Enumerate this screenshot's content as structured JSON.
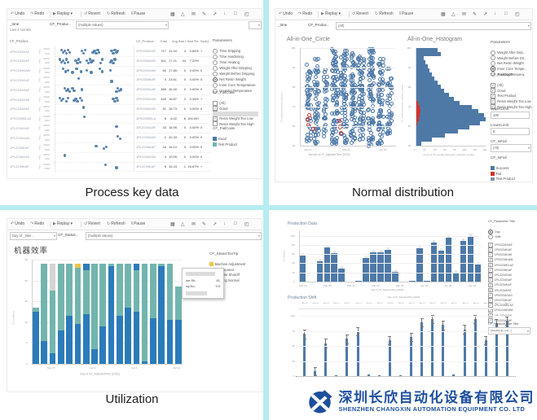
{
  "canvas": {
    "bg": "#ffffff",
    "divider_color": "#b5edf0"
  },
  "captions": {
    "tl": "Process key data",
    "tr": "Normal distribution",
    "bl": "Utilization"
  },
  "toolbar": {
    "items": [
      {
        "icon": "↶",
        "label": "Undo"
      },
      {
        "icon": "↷",
        "label": "Redo"
      },
      {
        "icon": "▶",
        "label": "Replay",
        "caret": true
      },
      {
        "icon": "↺",
        "label": "Revert"
      },
      {
        "icon": "↻",
        "label": "Refresh"
      },
      {
        "icon": "‖",
        "label": "Pause"
      }
    ],
    "right_icons": [
      {
        "glyph": "▦",
        "name": "view-data-icon"
      },
      {
        "glyph": "△",
        "name": "alerts-icon"
      },
      {
        "glyph": "✉",
        "name": "subscribe-icon"
      },
      {
        "glyph": "✎",
        "name": "edit-icon"
      },
      {
        "glyph": "↗",
        "name": "share-icon"
      },
      {
        "glyph": "↓",
        "name": "download-icon"
      },
      {
        "glyph": "□",
        "name": "comments-icon"
      },
      {
        "glyph": "◰",
        "name": "fullscreen-icon"
      }
    ]
  },
  "tl": {
    "filters": {
      "time_label": "_time",
      "time_value": "Last 4 months",
      "product_label": "CF_Produc..",
      "product_value": "(multiple values)"
    },
    "row_header": "CF_Product..",
    "row_axis_label": "Para..",
    "parameters": {
      "title": "Parameters",
      "options": [
        "Time Dripping",
        "Time Hardening",
        "Time Heating",
        "Weight After Dripping",
        "Weight Before Dripping",
        "Net Resin Weight",
        "Inner Core Temperature",
        "Housing Temperature"
      ],
      "selected": 5
    },
    "failcode_filter": {
      "title": "CF_FailCode",
      "items": [
        {
          "label": "(All)",
          "checked": false
        },
        {
          "label": "Good",
          "checked": true
        },
        {
          "label": "Test Product",
          "checked": true
        },
        {
          "label": "Resin Weight Too Low",
          "checked": true
        },
        {
          "label": "Resin Weight Too High",
          "checked": false
        }
      ],
      "highlight_index": 3
    },
    "failcode_legend": {
      "title": "CF_FailCode",
      "items": [
        {
          "label": "Good",
          "color": "#4e79a7"
        },
        {
          "label": "Test Product",
          "color": "#72b5ae"
        }
      ]
    }
  },
  "tr": {
    "filters": {
      "time_label": "_time",
      "product_label": "CF_Produc..",
      "product_value": "(All)"
    },
    "circle": {
      "title": "All-in-One_Circle",
      "ylabel": "CF_overall_parameter_selection..",
      "yticks": [
        100,
        90,
        80,
        70,
        60,
        50
      ],
      "xlabel": "Second of CF_AdjustedTime [2023]"
    },
    "hist": {
      "title": "All-in-One_Histogram",
      "ylabel": "CF_overall_parameter_selection_numbe..",
      "xlabel": "Count of CF_overall_parameter_selection_numbe.."
    },
    "parameters": {
      "title": "Parameters",
      "options": [
        "Weight After Drip..",
        "Weight Before Dri..",
        "Net Resin Weight",
        "Inner Core Tempe..",
        "Housing Tempera.."
      ],
      "selected": 3
    },
    "failcode_filter": {
      "title": "CF_FailCode",
      "items": [
        "(All)",
        "Good",
        "Test Product",
        "Resin Weight Too Low",
        "Resin Weight Too High"
      ]
    },
    "upper_limit": {
      "label": "UpperLimit",
      "value": "100"
    },
    "lower_limit": {
      "label": "LowerLimit",
      "value": "0"
    },
    "isfail_select": {
      "label": "CF_IsFail",
      "value": "(All)"
    },
    "isfail_legend": {
      "title": "CF_IsFail",
      "items": [
        {
          "label": "Success",
          "color": "#4e79a7"
        },
        {
          "label": "Fail",
          "color": "#d0342c"
        },
        {
          "label": "Test Product",
          "color": "#7b93ad"
        }
      ]
    }
  },
  "bl": {
    "filters": {
      "day_value": "Day of _time ..",
      "status_label": "CF_Status..",
      "status_value": "(multiple values)"
    },
    "title": "机器效率",
    "ylabel": "CF_TotalHours",
    "xlabel": "Day of CF_AdjustedTime [2023]",
    "legend": {
      "title": "CF_StatusTooTip",
      "items": [
        {
          "label": "Machine Adjustment",
          "color": "#eec643"
        },
        {
          "label": "Maintenance",
          "color": "#d4d4d4"
        },
        {
          "label": "Machine Shutoff",
          "color": "#72b5ae"
        },
        {
          "label": "Working Normal",
          "color": "#2b7bba"
        }
      ]
    },
    "tooltip": {
      "rows": [
        [
          "ine Sh..",
          "61"
        ],
        [
          "ng No..",
          "9.9"
        ]
      ]
    }
  },
  "br": {
    "chart1": {
      "title": "Production Data",
      "ylabel": "CF_Quantity",
      "xlabel": "Day of CF_AdjustedTime [2023]"
    },
    "chart2": {
      "title": "Production Shift",
      "top_axis_label": "Day of CF_AdjustedTime [2023]"
    },
    "sidebar": {
      "param_filter": {
        "title": "CF_Parameter Title",
        "options": [
          "Day",
          "Shift"
        ],
        "selected": 0
      },
      "product_codes": [
        "1PX2234GAF",
        "1PX2234KAF",
        "1PX2234KAK",
        "1PX2234KAW",
        "1PX2235ELA2",
        "1PX2235KAF",
        "1PL2234GA0",
        "1PL2234GAF",
        "1PL2234KAF",
        "1PL2234KAT",
        "1PX2234GA0",
        "1PX2234KAT",
        "1PL2235ELA2",
        "1PX2235KAW",
        "1PL2234XAF",
        "1PX2234XAF"
      ],
      "product_filter": {
        "title": "CF_ProductCode Title",
        "value": "(Multiple val..)"
      }
    }
  },
  "logo": {
    "cn": "深圳长欣自动化设备有限公司",
    "en": "SHENZHEN CHANGXIN AUTOMATION EQUIPMENT CO. LTD",
    "color": "#1d4f9e"
  },
  "chart_data": [
    {
      "panel": "top-left",
      "type": "scatter",
      "title": "Cycle dot plot by product code",
      "y_axis": [
        "20:00",
        "0:00"
      ],
      "rows": [
        {
          "code": "1PX2234KAF",
          "dots": [
            8,
            10,
            12,
            14,
            16,
            18,
            34,
            36,
            38,
            48,
            50,
            52,
            54,
            56,
            72,
            74,
            76,
            78,
            80
          ]
        },
        {
          "code": "1PX2234KAF",
          "dots": [
            6,
            8,
            10,
            12,
            14,
            16,
            26,
            28,
            30,
            32,
            40,
            42,
            44,
            46,
            48,
            58,
            60,
            70,
            72,
            74,
            76
          ]
        },
        {
          "code": "1PX2234KAW",
          "dots": [
            10,
            13,
            16,
            22,
            27,
            33,
            40,
            46,
            57,
            60,
            70
          ]
        },
        {
          "code": "1PX2234KAF",
          "dots": [
            30,
            72
          ]
        },
        {
          "code": "1PX2234KAF",
          "dots": [
            12,
            14,
            16,
            18,
            22,
            24,
            34,
            78,
            80,
            82,
            84
          ]
        },
        {
          "code": "1PX2234KAK",
          "dots": [
            6,
            8,
            10,
            14,
            16,
            24,
            26,
            28,
            32,
            34,
            74,
            76,
            78,
            80
          ]
        },
        {
          "code": "1PX2234KAF",
          "dots": [
            36
          ]
        },
        {
          "code": "1PX2235ELA2",
          "dots": [
            37
          ]
        },
        {
          "code": "1PL2234GAF",
          "dots": [
            78
          ]
        },
        {
          "code": "1PL2234GA0",
          "dots": [
            80,
            83
          ]
        },
        {
          "code": "1PL2234KAF",
          "dots": [
            52,
            62,
            65
          ]
        },
        {
          "code": "1PL2234GA0",
          "dots": [
            12
          ]
        },
        {
          "code": "1PL2234KAF",
          "dots": [
            64,
            78
          ]
        }
      ]
    },
    {
      "panel": "top-left",
      "type": "table",
      "columns": [
        "CF_Product.. ≡",
        "Total",
        "Avg",
        "Bad Co..",
        "Bad Ra..",
        "BadQ.."
      ],
      "rows": [
        [
          "1PX2234KAF",
          "717",
          "11.94",
          "4",
          "0.84%",
          "+"
        ],
        [
          "1PX2234KAF",
          "811",
          "17.21",
          "44",
          "7.20%",
          "▬"
        ],
        [
          "1PX2234KAW",
          "80",
          "17.85",
          "0",
          "0.00%",
          "0"
        ],
        [
          "1PX2234KAF",
          "4",
          "23.61",
          "0",
          "0.00%",
          "0"
        ],
        [
          "1PX2234KAF",
          "469",
          "16.40",
          "0",
          "0.00%",
          "0"
        ],
        [
          "1PX2234KAK",
          "440",
          "16.87",
          "2",
          "0.45%",
          "+"
        ],
        [
          "1PX2234KAF",
          "51",
          "18.73",
          "0",
          "0.00%",
          "0"
        ],
        [
          "1PX2235ELA2",
          "8",
          "8.02",
          "8",
          "100.00%",
          "▬"
        ],
        [
          "1PL2234GAF",
          "33",
          "18.95",
          "0",
          "0.00%",
          "0"
        ],
        [
          "1PL2234GA0",
          "2",
          "20.33",
          "0",
          "0.00%",
          "0"
        ],
        [
          "1PL2234KAF",
          "16",
          "18.10",
          "0",
          "0.00%",
          "0"
        ],
        [
          "1PL2234GA0",
          "4",
          "19.05",
          "0",
          "0.00%",
          "0"
        ],
        [
          "1PL2234KAF",
          "6",
          "16.43",
          "1",
          "16.67%",
          "+"
        ]
      ]
    },
    {
      "panel": "top-right",
      "type": "scatter",
      "title": "All-in-One_Circle",
      "ylim": [
        50,
        100
      ],
      "xticks": [
        "Mar 01",
        "Mar 31",
        "Apr 30"
      ],
      "xtick_pct": [
        10,
        50,
        88
      ],
      "bands": [
        [
          6,
          5,
          50,
          52,
          92
        ],
        [
          14,
          5,
          60,
          50,
          95
        ],
        [
          24,
          4,
          35,
          55,
          90
        ],
        [
          32,
          7,
          90,
          50,
          100
        ],
        [
          42,
          6,
          80,
          52,
          100
        ],
        [
          52,
          5,
          70,
          50,
          98
        ],
        [
          60,
          6,
          75,
          52,
          97
        ],
        [
          70,
          6,
          85,
          50,
          100
        ],
        [
          80,
          6,
          70,
          50,
          96
        ],
        [
          90,
          5,
          40,
          55,
          90
        ]
      ],
      "fail_points": [
        [
          7,
          64
        ],
        [
          8,
          61
        ],
        [
          9,
          66
        ],
        [
          13,
          59
        ],
        [
          40,
          63
        ],
        [
          41,
          60
        ],
        [
          42,
          57
        ]
      ]
    },
    {
      "panel": "top-right",
      "type": "histogram",
      "orientation": "horizontal",
      "title": "All-in-One_Histogram",
      "ylim": [
        50,
        100
      ],
      "xlim": [
        0,
        140
      ],
      "xticks": [
        0,
        20,
        40,
        60,
        80,
        100,
        120,
        140
      ],
      "counts_top_to_bottom": [
        44,
        50,
        16,
        20,
        24,
        28,
        33,
        38,
        44,
        50,
        57,
        66,
        76,
        88,
        112,
        126,
        136,
        140,
        128,
        108,
        84,
        58,
        32,
        12
      ],
      "fail_counts": [
        0,
        0,
        0,
        0,
        0,
        0,
        0,
        0,
        0,
        0,
        0,
        0,
        0,
        5,
        8,
        10,
        8,
        6,
        4,
        0,
        0,
        0,
        0,
        0
      ]
    },
    {
      "panel": "bottom-left",
      "type": "stacked-bar",
      "title": "机器效率",
      "ylim": [
        0,
        25
      ],
      "yticks": [
        0,
        5,
        10,
        15,
        20,
        25
      ],
      "segment_keys": [
        "working_normal",
        "machine_shutoff",
        "maintenance",
        "machine_adjustment",
        "working_normal_top"
      ],
      "bars": [
        [
          12.5,
          1,
          0,
          0,
          0
        ],
        [
          5.5,
          18.5,
          0,
          0,
          0
        ],
        [
          2.5,
          15,
          6.5,
          0,
          0
        ],
        [
          8,
          16,
          0,
          0,
          0
        ],
        [
          11.5,
          12.5,
          0,
          0,
          0
        ],
        [
          9.5,
          13.5,
          0,
          1,
          0
        ],
        [
          12,
          10.5,
          0,
          0,
          1.5
        ],
        [
          3.5,
          20.5,
          0,
          0,
          0
        ],
        [
          9,
          15,
          0,
          0,
          0
        ],
        [
          23.5,
          0.5,
          0,
          0,
          0
        ],
        [
          11.5,
          12.5,
          0,
          0,
          0
        ],
        [
          13.5,
          10.5,
          0,
          0,
          0
        ],
        [
          12.5,
          10,
          0,
          0,
          1.5
        ],
        [
          0.5,
          23.5,
          0,
          0,
          0
        ],
        [
          11,
          13,
          0,
          0,
          0
        ],
        [
          23.5,
          0.5,
          0,
          0,
          0
        ],
        [
          10.5,
          13.5,
          0,
          0,
          0
        ],
        [
          10.5,
          8,
          0,
          0,
          0
        ]
      ],
      "xticks": [
        "Mar 27",
        "Apr 1",
        "Apr 6",
        "Apr 11"
      ],
      "xtick_positions": [
        2,
        7,
        12,
        17
      ]
    },
    {
      "panel": "bottom-right",
      "type": "bar",
      "title": "Production Data",
      "ylim": [
        0,
        110
      ],
      "yticks": [
        0,
        20,
        40,
        60,
        80,
        100
      ],
      "groups": [
        [
          57
        ],
        [
          45,
          75,
          62,
          28
        ],
        [
          1,
          52,
          63,
          64,
          70,
          22
        ],
        [
          1,
          72,
          1,
          85,
          67,
          95,
          20,
          88,
          100,
          38
        ]
      ],
      "xticks": [
        "Feb 26",
        "Mar 05",
        "Mar 12",
        "Mar 19",
        "Mar 26",
        "Apr 02",
        "Apr 09",
        "Apr 16"
      ]
    },
    {
      "panel": "bottom-right",
      "type": "bar",
      "title": "Production Shift",
      "ylim": [
        0,
        110
      ],
      "yticks": [
        0,
        25,
        50,
        75,
        100
      ],
      "whisker": 7,
      "values": [
        70,
        8,
        55,
        2,
        62,
        75,
        3,
        2,
        60,
        2,
        65,
        90,
        95,
        85,
        3,
        78,
        95,
        60,
        88,
        92
      ],
      "dates": [
        "Mar 06",
        "Mar 08",
        "Mar 09",
        "Mar 10",
        "Mar 12",
        "Mar 13",
        "Mar 15",
        "Mar 16",
        "Mar 18",
        "Mar 20",
        "Mar 22",
        "Mar 24",
        "Mar 27",
        "Mar 29",
        "Mar 31",
        "Apr 02",
        "Apr 05",
        "Apr 07",
        "Apr 10",
        "Apr 12"
      ]
    }
  ]
}
